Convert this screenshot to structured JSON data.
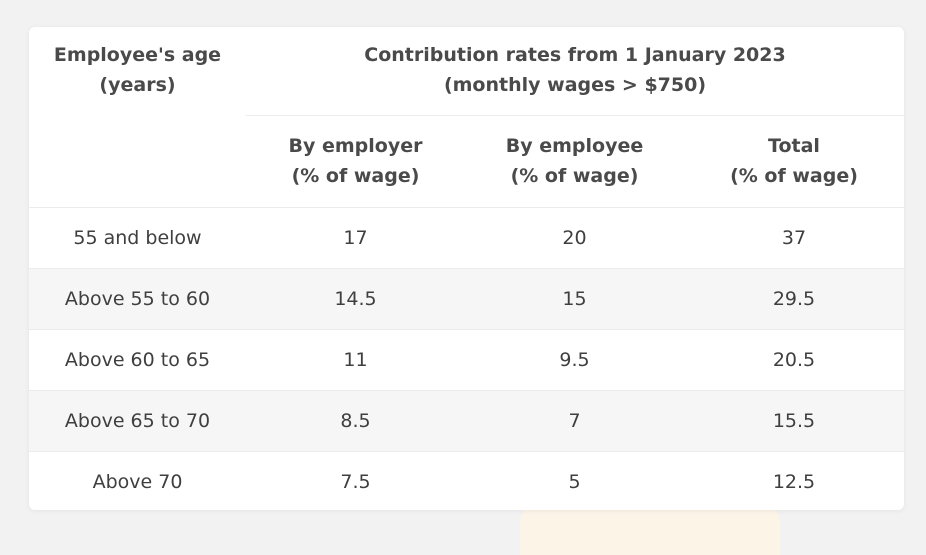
{
  "table": {
    "age_header": [
      "Employee's age",
      "(years)"
    ],
    "rates_header": [
      "Contribution rates from 1 January 2023",
      "(monthly wages > $750)"
    ],
    "sub_headers": [
      [
        "By employer",
        "(% of wage)"
      ],
      [
        "By employee",
        "(% of wage)"
      ],
      [
        "Total",
        "(% of wage)"
      ]
    ],
    "rows": [
      [
        "55 and below",
        "17",
        "20",
        "37"
      ],
      [
        "Above 55 to 60",
        "14.5",
        "15",
        "29.5"
      ],
      [
        "Above 60 to 65",
        "11",
        "9.5",
        "20.5"
      ],
      [
        "Above 65 to 70",
        "8.5",
        "7",
        "15.5"
      ],
      [
        "Above 70",
        "7.5",
        "5",
        "12.5"
      ]
    ]
  },
  "colors": {
    "background": "#f2f2f2",
    "card": "#ffffff",
    "alt_row": "#f6f6f6",
    "text": "#3b3b3b"
  }
}
